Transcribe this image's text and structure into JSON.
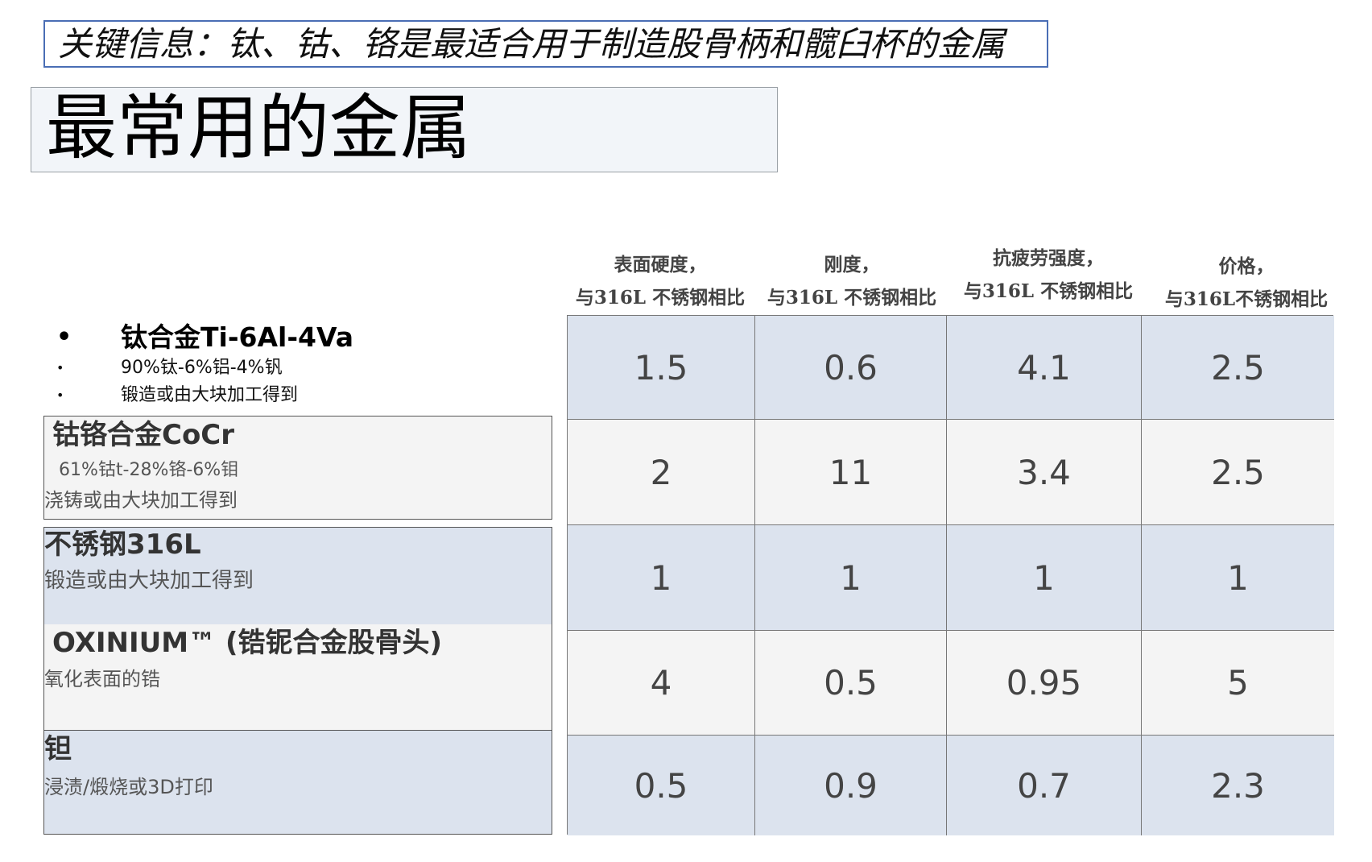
{
  "key_info": "关键信息：钛、钴、铬是最适合用于制造股骨柄和髋臼杯的金属",
  "title": "最常用的金属",
  "columns": [
    {
      "line1": "表面硬度，",
      "line2": "与316L 不锈钢相比"
    },
    {
      "line1": "刚度，",
      "line2": "与316L 不锈钢相比"
    },
    {
      "line1": "抗疲劳强度，",
      "line2": "与316L 不锈钢相比"
    },
    {
      "line1": "价格，",
      "line2": "与316L不锈钢相比"
    }
  ],
  "bullet_marker": "•",
  "materials": [
    {
      "name": "钛合金Ti-6Al-4Va",
      "details": [
        "90%钛-6%铝-4%钒",
        "锻造或由大块加工得到"
      ]
    },
    {
      "name": "钴铬合金CoCr",
      "details": [
        "61%钴t-28%铬-6%钼",
        "浇铸或由大块加工得到"
      ]
    },
    {
      "name": "不锈钢316L",
      "details": [
        "锻造或由大块加工得到"
      ]
    },
    {
      "name": "OXINIUM™ (锆铌合金股骨头)",
      "details": [
        "氧化表面的锆"
      ]
    },
    {
      "name": "钽",
      "details": [
        "浸渍/煅烧或3D打印"
      ]
    }
  ],
  "table": {
    "rows": [
      [
        "1.5",
        "0.6",
        "4.1",
        "2.5"
      ],
      [
        "2",
        "11",
        "3.4",
        "2.5"
      ],
      [
        "1",
        "1",
        "1",
        "1"
      ],
      [
        "4",
        "0.5",
        "0.95",
        "5"
      ],
      [
        "0.5",
        "0.9",
        "0.7",
        "2.3"
      ]
    ]
  },
  "colors": {
    "key_border": "#4a6eb5",
    "shaded_row": "#dce3ee",
    "light_row": "#f4f4f4",
    "title_bg": "#f2f5f9"
  }
}
